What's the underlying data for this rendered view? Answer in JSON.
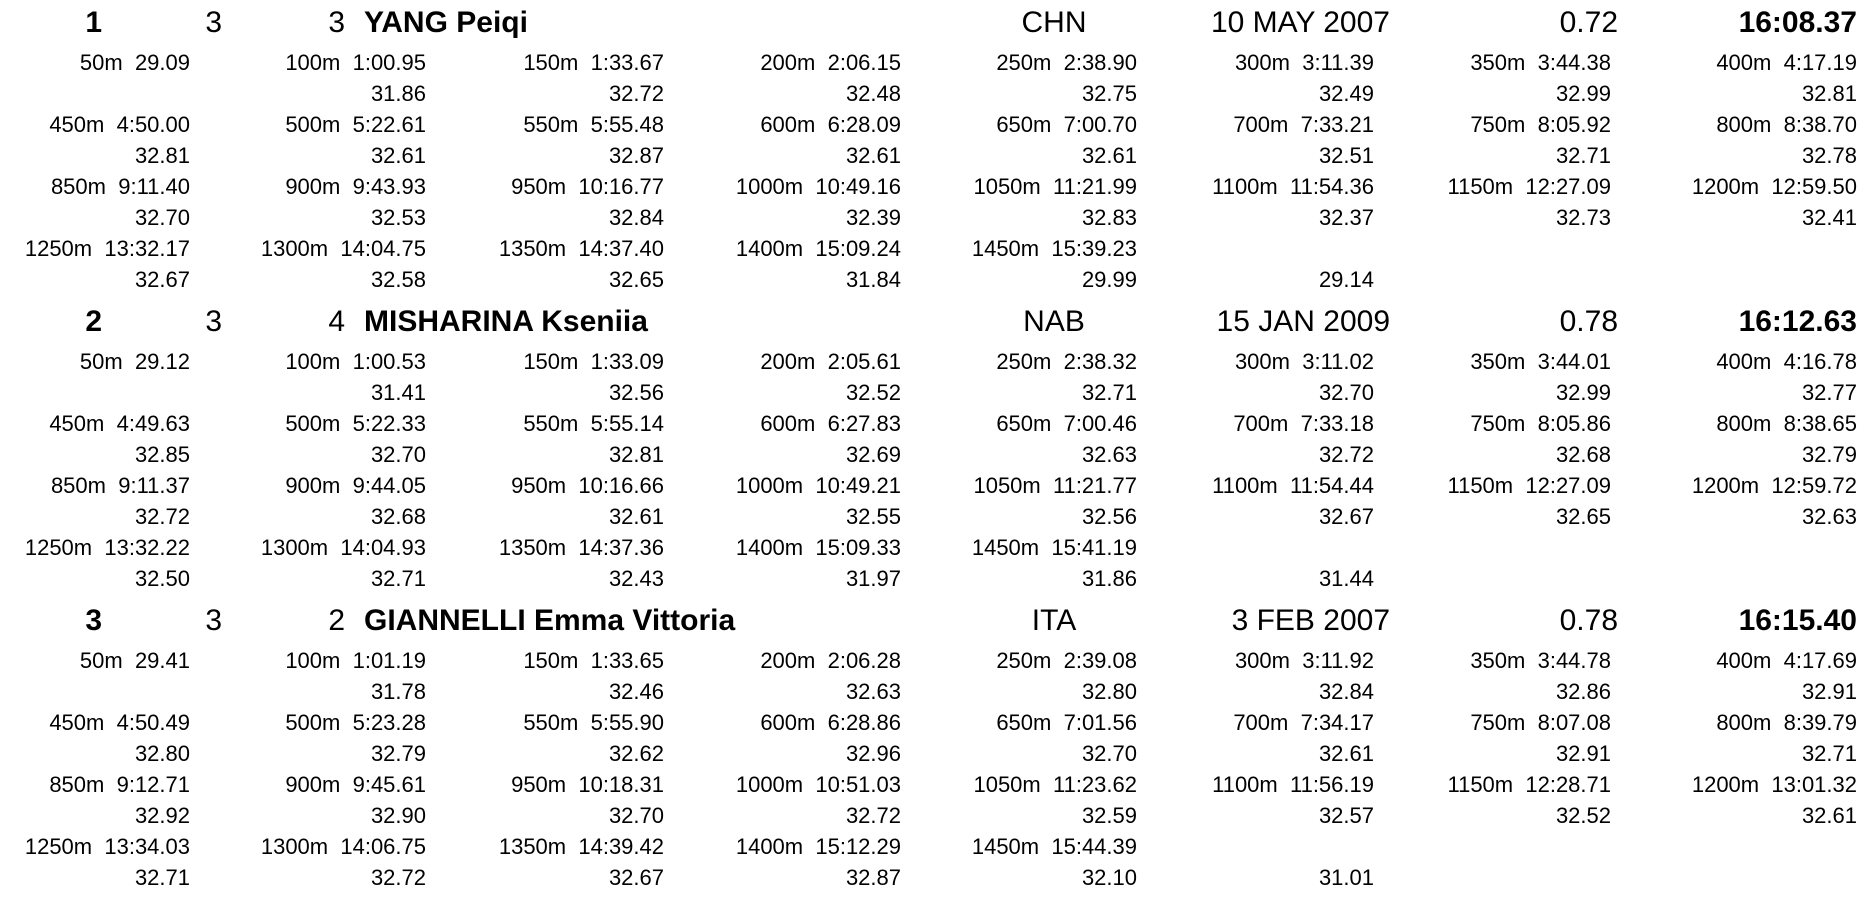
{
  "athletes": [
    {
      "rank": "1",
      "heat": "3",
      "lane": "3",
      "name": "YANG Peiqi",
      "nation": "CHN",
      "birth_date": "10 MAY 2007",
      "reaction_time": "0.72",
      "final_time": "16:08.37",
      "rows": [
        {
          "splits": [
            {
              "dist": "50m",
              "time": "29.09"
            },
            {
              "dist": "100m",
              "time": "1:00.95"
            },
            {
              "dist": "150m",
              "time": "1:33.67"
            },
            {
              "dist": "200m",
              "time": "2:06.15"
            },
            {
              "dist": "250m",
              "time": "2:38.90"
            },
            {
              "dist": "300m",
              "time": "3:11.39"
            },
            {
              "dist": "350m",
              "time": "3:44.38"
            },
            {
              "dist": "400m",
              "time": "4:17.19"
            }
          ],
          "laps": [
            "",
            "31.86",
            "32.72",
            "32.48",
            "32.75",
            "32.49",
            "32.99",
            "32.81"
          ]
        },
        {
          "splits": [
            {
              "dist": "450m",
              "time": "4:50.00"
            },
            {
              "dist": "500m",
              "time": "5:22.61"
            },
            {
              "dist": "550m",
              "time": "5:55.48"
            },
            {
              "dist": "600m",
              "time": "6:28.09"
            },
            {
              "dist": "650m",
              "time": "7:00.70"
            },
            {
              "dist": "700m",
              "time": "7:33.21"
            },
            {
              "dist": "750m",
              "time": "8:05.92"
            },
            {
              "dist": "800m",
              "time": "8:38.70"
            }
          ],
          "laps": [
            "32.81",
            "32.61",
            "32.87",
            "32.61",
            "32.61",
            "32.51",
            "32.71",
            "32.78"
          ]
        },
        {
          "splits": [
            {
              "dist": "850m",
              "time": "9:11.40"
            },
            {
              "dist": "900m",
              "time": "9:43.93"
            },
            {
              "dist": "950m",
              "time": "10:16.77"
            },
            {
              "dist": "1000m",
              "time": "10:49.16"
            },
            {
              "dist": "1050m",
              "time": "11:21.99"
            },
            {
              "dist": "1100m",
              "time": "11:54.36"
            },
            {
              "dist": "1150m",
              "time": "12:27.09"
            },
            {
              "dist": "1200m",
              "time": "12:59.50"
            }
          ],
          "laps": [
            "32.70",
            "32.53",
            "32.84",
            "32.39",
            "32.83",
            "32.37",
            "32.73",
            "32.41"
          ]
        },
        {
          "splits": [
            {
              "dist": "1250m",
              "time": "13:32.17"
            },
            {
              "dist": "1300m",
              "time": "14:04.75"
            },
            {
              "dist": "1350m",
              "time": "14:37.40"
            },
            {
              "dist": "1400m",
              "time": "15:09.24"
            },
            {
              "dist": "1450m",
              "time": "15:39.23"
            },
            {
              "dist": "",
              "time": ""
            },
            {
              "dist": "",
              "time": ""
            },
            {
              "dist": "",
              "time": ""
            }
          ],
          "laps": [
            "32.67",
            "32.58",
            "32.65",
            "31.84",
            "29.99",
            "29.14",
            "",
            ""
          ]
        }
      ]
    },
    {
      "rank": "2",
      "heat": "3",
      "lane": "4",
      "name": "MISHARINA Kseniia",
      "nation": "NAB",
      "birth_date": "15 JAN 2009",
      "reaction_time": "0.78",
      "final_time": "16:12.63",
      "rows": [
        {
          "splits": [
            {
              "dist": "50m",
              "time": "29.12"
            },
            {
              "dist": "100m",
              "time": "1:00.53"
            },
            {
              "dist": "150m",
              "time": "1:33.09"
            },
            {
              "dist": "200m",
              "time": "2:05.61"
            },
            {
              "dist": "250m",
              "time": "2:38.32"
            },
            {
              "dist": "300m",
              "time": "3:11.02"
            },
            {
              "dist": "350m",
              "time": "3:44.01"
            },
            {
              "dist": "400m",
              "time": "4:16.78"
            }
          ],
          "laps": [
            "",
            "31.41",
            "32.56",
            "32.52",
            "32.71",
            "32.70",
            "32.99",
            "32.77"
          ]
        },
        {
          "splits": [
            {
              "dist": "450m",
              "time": "4:49.63"
            },
            {
              "dist": "500m",
              "time": "5:22.33"
            },
            {
              "dist": "550m",
              "time": "5:55.14"
            },
            {
              "dist": "600m",
              "time": "6:27.83"
            },
            {
              "dist": "650m",
              "time": "7:00.46"
            },
            {
              "dist": "700m",
              "time": "7:33.18"
            },
            {
              "dist": "750m",
              "time": "8:05.86"
            },
            {
              "dist": "800m",
              "time": "8:38.65"
            }
          ],
          "laps": [
            "32.85",
            "32.70",
            "32.81",
            "32.69",
            "32.63",
            "32.72",
            "32.68",
            "32.79"
          ]
        },
        {
          "splits": [
            {
              "dist": "850m",
              "time": "9:11.37"
            },
            {
              "dist": "900m",
              "time": "9:44.05"
            },
            {
              "dist": "950m",
              "time": "10:16.66"
            },
            {
              "dist": "1000m",
              "time": "10:49.21"
            },
            {
              "dist": "1050m",
              "time": "11:21.77"
            },
            {
              "dist": "1100m",
              "time": "11:54.44"
            },
            {
              "dist": "1150m",
              "time": "12:27.09"
            },
            {
              "dist": "1200m",
              "time": "12:59.72"
            }
          ],
          "laps": [
            "32.72",
            "32.68",
            "32.61",
            "32.55",
            "32.56",
            "32.67",
            "32.65",
            "32.63"
          ]
        },
        {
          "splits": [
            {
              "dist": "1250m",
              "time": "13:32.22"
            },
            {
              "dist": "1300m",
              "time": "14:04.93"
            },
            {
              "dist": "1350m",
              "time": "14:37.36"
            },
            {
              "dist": "1400m",
              "time": "15:09.33"
            },
            {
              "dist": "1450m",
              "time": "15:41.19"
            },
            {
              "dist": "",
              "time": ""
            },
            {
              "dist": "",
              "time": ""
            },
            {
              "dist": "",
              "time": ""
            }
          ],
          "laps": [
            "32.50",
            "32.71",
            "32.43",
            "31.97",
            "31.86",
            "31.44",
            "",
            ""
          ]
        }
      ]
    },
    {
      "rank": "3",
      "heat": "3",
      "lane": "2",
      "name": "GIANNELLI Emma Vittoria",
      "nation": "ITA",
      "birth_date": "3 FEB 2007",
      "reaction_time": "0.78",
      "final_time": "16:15.40",
      "rows": [
        {
          "splits": [
            {
              "dist": "50m",
              "time": "29.41"
            },
            {
              "dist": "100m",
              "time": "1:01.19"
            },
            {
              "dist": "150m",
              "time": "1:33.65"
            },
            {
              "dist": "200m",
              "time": "2:06.28"
            },
            {
              "dist": "250m",
              "time": "2:39.08"
            },
            {
              "dist": "300m",
              "time": "3:11.92"
            },
            {
              "dist": "350m",
              "time": "3:44.78"
            },
            {
              "dist": "400m",
              "time": "4:17.69"
            }
          ],
          "laps": [
            "",
            "31.78",
            "32.46",
            "32.63",
            "32.80",
            "32.84",
            "32.86",
            "32.91"
          ]
        },
        {
          "splits": [
            {
              "dist": "450m",
              "time": "4:50.49"
            },
            {
              "dist": "500m",
              "time": "5:23.28"
            },
            {
              "dist": "550m",
              "time": "5:55.90"
            },
            {
              "dist": "600m",
              "time": "6:28.86"
            },
            {
              "dist": "650m",
              "time": "7:01.56"
            },
            {
              "dist": "700m",
              "time": "7:34.17"
            },
            {
              "dist": "750m",
              "time": "8:07.08"
            },
            {
              "dist": "800m",
              "time": "8:39.79"
            }
          ],
          "laps": [
            "32.80",
            "32.79",
            "32.62",
            "32.96",
            "32.70",
            "32.61",
            "32.91",
            "32.71"
          ]
        },
        {
          "splits": [
            {
              "dist": "850m",
              "time": "9:12.71"
            },
            {
              "dist": "900m",
              "time": "9:45.61"
            },
            {
              "dist": "950m",
              "time": "10:18.31"
            },
            {
              "dist": "1000m",
              "time": "10:51.03"
            },
            {
              "dist": "1050m",
              "time": "11:23.62"
            },
            {
              "dist": "1100m",
              "time": "11:56.19"
            },
            {
              "dist": "1150m",
              "time": "12:28.71"
            },
            {
              "dist": "1200m",
              "time": "13:01.32"
            }
          ],
          "laps": [
            "32.92",
            "32.90",
            "32.70",
            "32.72",
            "32.59",
            "32.57",
            "32.52",
            "32.61"
          ]
        },
        {
          "splits": [
            {
              "dist": "1250m",
              "time": "13:34.03"
            },
            {
              "dist": "1300m",
              "time": "14:06.75"
            },
            {
              "dist": "1350m",
              "time": "14:39.42"
            },
            {
              "dist": "1400m",
              "time": "15:12.29"
            },
            {
              "dist": "1450m",
              "time": "15:44.39"
            },
            {
              "dist": "",
              "time": ""
            },
            {
              "dist": "",
              "time": ""
            },
            {
              "dist": "",
              "time": ""
            }
          ],
          "laps": [
            "32.71",
            "32.72",
            "32.67",
            "32.87",
            "32.10",
            "31.01",
            "",
            ""
          ]
        }
      ]
    }
  ]
}
